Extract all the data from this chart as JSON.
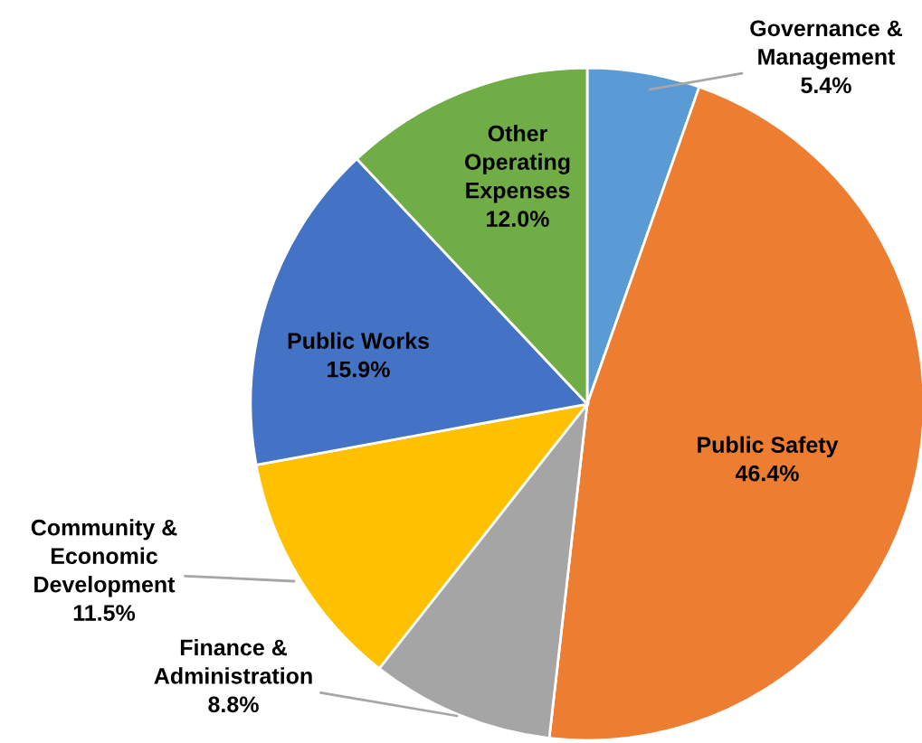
{
  "chart_data": {
    "type": "pie",
    "categories": [
      "Governance &\nManagement",
      "Public Safety",
      "Finance &\nAdministration",
      "Community &\nEconomic\nDevelopment",
      "Public Works",
      "Other\nOperating\nExpenses"
    ],
    "values": [
      5.4,
      46.4,
      8.8,
      11.5,
      15.9,
      12.0
    ],
    "value_labels": [
      "5.4%",
      "46.4%",
      "8.8%",
      "11.5%",
      "15.9%",
      "12.0%"
    ],
    "colors": [
      "#5b9bd5",
      "#ed7d31",
      "#a5a5a5",
      "#ffc000",
      "#4472c4",
      "#70ad47"
    ]
  }
}
